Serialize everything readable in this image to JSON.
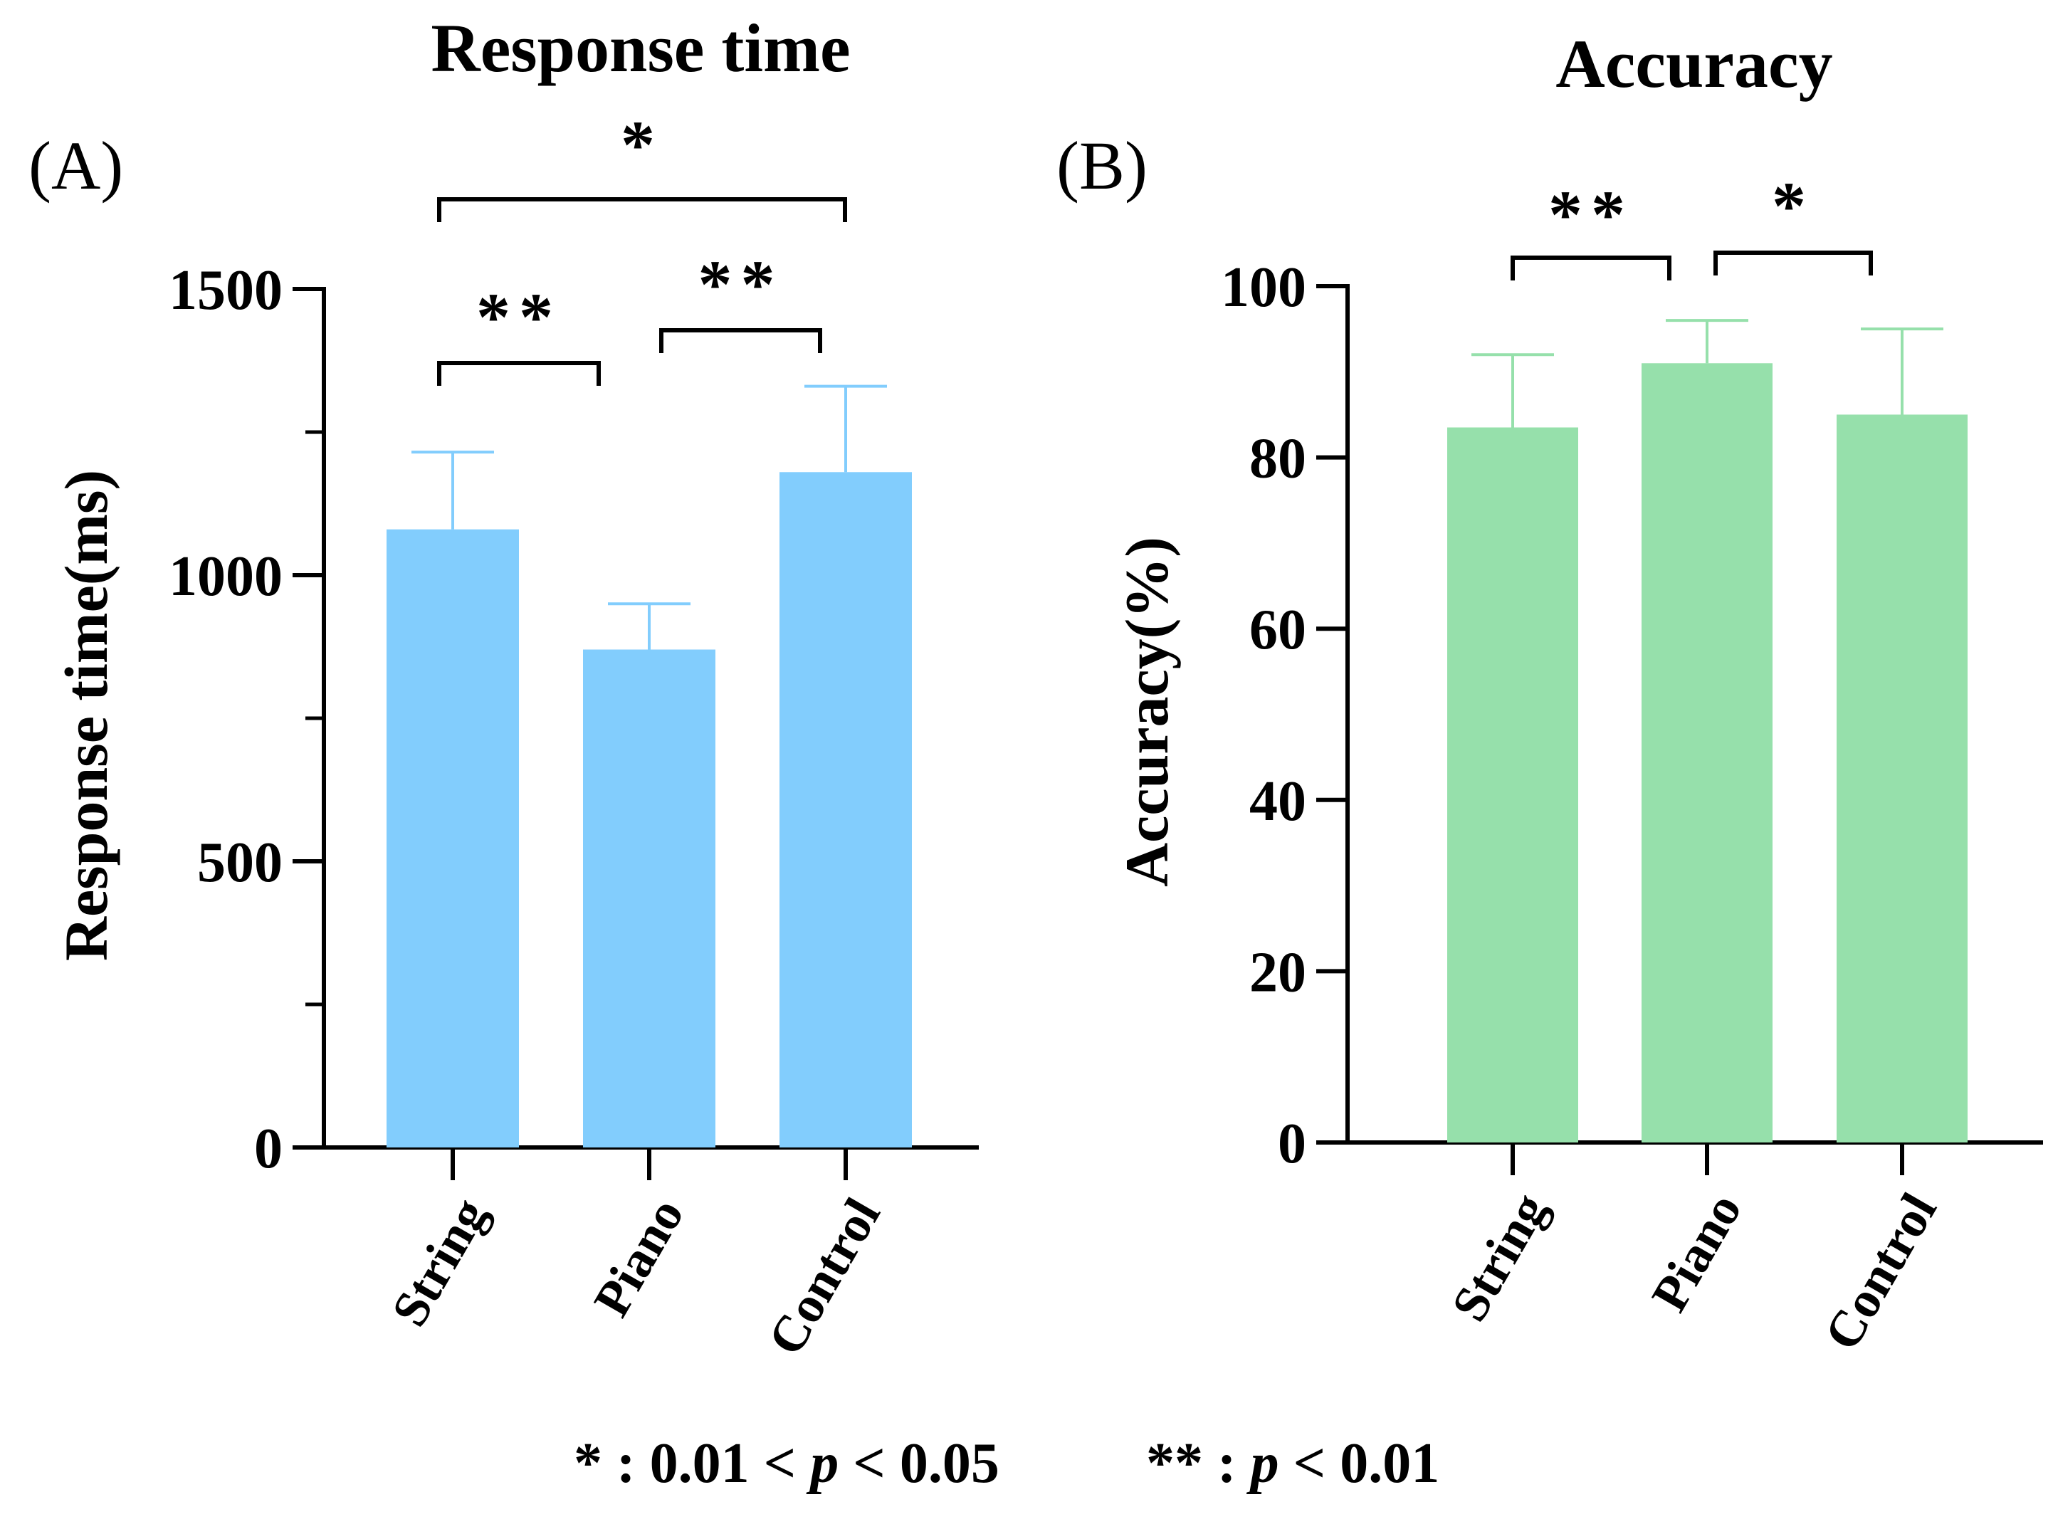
{
  "chart_data": [
    {
      "type": "bar",
      "panel_label": "(A)",
      "title": "Response time",
      "xlabel": "",
      "ylabel": "Response time(ms)",
      "ylim": [
        0,
        1500
      ],
      "yticks": [
        0,
        500,
        1000,
        1500
      ],
      "categories": [
        "String",
        "Piano",
        "Control"
      ],
      "values": [
        1080,
        870,
        1180
      ],
      "errors": [
        135,
        80,
        150
      ],
      "color": "#82cdfd",
      "significance": [
        {
          "from": 0,
          "to": 1,
          "label": "**"
        },
        {
          "from": 1,
          "to": 2,
          "label": "**"
        },
        {
          "from": 0,
          "to": 2,
          "label": "*"
        }
      ]
    },
    {
      "type": "bar",
      "panel_label": "(B)",
      "title": "Accuracy",
      "xlabel": "",
      "ylabel": "Accuracy(%)",
      "ylim": [
        0,
        100
      ],
      "yticks": [
        0,
        20,
        40,
        60,
        80,
        100
      ],
      "categories": [
        "String",
        "Piano",
        "Control"
      ],
      "values": [
        83.5,
        91,
        85
      ],
      "errors": [
        8.5,
        5,
        10
      ],
      "color": "#96e0ab",
      "significance": [
        {
          "from": 0,
          "to": 1,
          "label": "**"
        },
        {
          "from": 1,
          "to": 2,
          "label": "*"
        }
      ]
    }
  ],
  "footnote": {
    "star1_prefix": "* : 0.01 < ",
    "star1_p": "p",
    "star1_suffix": " < 0.05",
    "star2_prefix": "** : ",
    "star2_p": "p",
    "star2_suffix": " < 0.01"
  }
}
